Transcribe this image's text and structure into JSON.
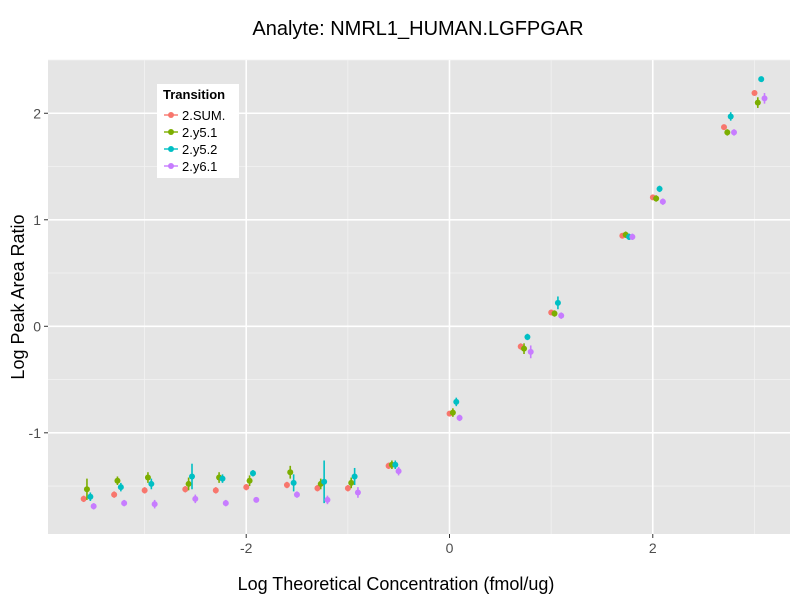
{
  "chart_data": {
    "type": "scatter",
    "title": "Analyte: NMRL1_HUMAN.LGFPGAR",
    "xlabel": "Log Theoretical Concentration (fmol/ug)",
    "ylabel": "Log Peak Area Ratio",
    "xlim": [
      -3.95,
      3.35
    ],
    "ylim": [
      -1.95,
      2.5
    ],
    "x_ticks": [
      -2,
      0,
      2
    ],
    "y_ticks": [
      -1,
      0,
      1,
      2
    ],
    "grid": true,
    "legend": {
      "title": "Transition",
      "position": "top-left"
    },
    "series": [
      {
        "name": "2.SUM.",
        "color": "#F8766D",
        "x": [
          -3.55,
          -3.25,
          -2.95,
          -2.55,
          -2.25,
          -1.95,
          -1.55,
          -1.25,
          -0.95,
          -0.55,
          0.05,
          0.75,
          1.05,
          1.75,
          2.05,
          2.75,
          3.05
        ],
        "y": [
          -1.62,
          -1.58,
          -1.54,
          -1.53,
          -1.54,
          -1.51,
          -1.49,
          -1.52,
          -1.52,
          -1.31,
          -0.82,
          -0.19,
          0.13,
          0.85,
          1.21,
          1.87,
          2.19
        ],
        "yerr": [
          0.03,
          0.03,
          0.03,
          0.03,
          0.03,
          0.03,
          0.03,
          0.03,
          0.03,
          0.03,
          0.02,
          0.03,
          0.02,
          0.02,
          0.02,
          0.02,
          0.02
        ]
      },
      {
        "name": "2.y5.1",
        "color": "#7CAE00",
        "x": [
          -3.55,
          -3.25,
          -2.95,
          -2.55,
          -2.25,
          -1.95,
          -1.55,
          -1.25,
          -0.95,
          -0.55,
          0.05,
          0.75,
          1.05,
          1.75,
          2.05,
          2.75,
          3.05
        ],
        "y": [
          -1.53,
          -1.45,
          -1.42,
          -1.48,
          -1.42,
          -1.45,
          -1.37,
          -1.48,
          -1.47,
          -1.3,
          -0.81,
          -0.21,
          0.12,
          0.86,
          1.2,
          1.82,
          2.1
        ],
        "yerr": [
          0.1,
          0.04,
          0.05,
          0.06,
          0.05,
          0.05,
          0.06,
          0.05,
          0.05,
          0.04,
          0.04,
          0.05,
          0.03,
          0.03,
          0.03,
          0.03,
          0.05
        ]
      },
      {
        "name": "2.y5.2",
        "color": "#00BFC4",
        "x": [
          -3.55,
          -3.25,
          -2.95,
          -2.55,
          -2.25,
          -1.95,
          -1.55,
          -1.25,
          -0.95,
          -0.55,
          0.05,
          0.75,
          1.05,
          1.75,
          2.05,
          2.75,
          3.05
        ],
        "y": [
          -1.6,
          -1.51,
          -1.48,
          -1.41,
          -1.43,
          -1.38,
          -1.47,
          -1.46,
          -1.41,
          -1.3,
          -0.71,
          -0.1,
          0.22,
          0.84,
          1.29,
          1.97,
          2.32
        ],
        "yerr": [
          0.04,
          0.04,
          0.05,
          0.12,
          0.04,
          0.03,
          0.08,
          0.2,
          0.08,
          0.04,
          0.04,
          0.03,
          0.06,
          0.03,
          0.03,
          0.04,
          0.02
        ]
      },
      {
        "name": "2.y6.1",
        "color": "#C77CFF",
        "x": [
          -3.55,
          -3.25,
          -2.95,
          -2.55,
          -2.25,
          -1.95,
          -1.55,
          -1.25,
          -0.95,
          -0.55,
          0.05,
          0.75,
          1.05,
          1.75,
          2.05,
          2.75,
          3.05
        ],
        "y": [
          -1.69,
          -1.66,
          -1.67,
          -1.62,
          -1.66,
          -1.63,
          -1.58,
          -1.63,
          -1.56,
          -1.36,
          -0.86,
          -0.24,
          0.1,
          0.84,
          1.17,
          1.82,
          2.14
        ],
        "yerr": [
          0.03,
          0.03,
          0.04,
          0.04,
          0.03,
          0.02,
          0.03,
          0.04,
          0.05,
          0.04,
          0.03,
          0.06,
          0.03,
          0.03,
          0.03,
          0.03,
          0.05
        ]
      }
    ]
  }
}
